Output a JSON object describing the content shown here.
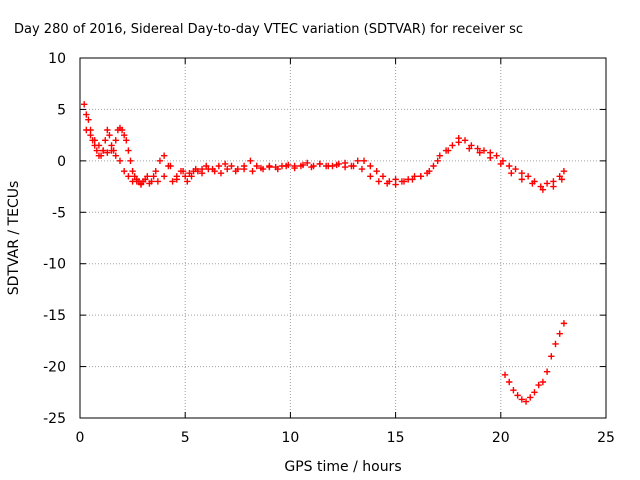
{
  "chart_data": {
    "type": "scatter",
    "title": "Day 280 of 2016, Sidereal Day-to-day VTEC variation (SDTVAR) for receiver sc",
    "xlabel": "GPS time / hours",
    "ylabel": "SDTVAR / TECUs",
    "xlim": [
      0,
      25
    ],
    "ylim": [
      -25,
      10
    ],
    "x_ticks": [
      0,
      5,
      10,
      15,
      20,
      25
    ],
    "y_ticks": [
      10,
      5,
      0,
      -5,
      -10,
      -15,
      -20,
      -25
    ],
    "x_tick_labels": [
      "0",
      "5",
      "10",
      "15",
      "20",
      "25"
    ],
    "y_tick_labels": [
      "10",
      "5",
      "0",
      "-5",
      "-10",
      "-15",
      "-20",
      "-25"
    ],
    "grid": true,
    "marker": "plus",
    "color": "#ff0000",
    "series": [
      {
        "x": [
          0.2,
          0.3,
          0.4,
          0.5,
          0.6,
          0.7,
          0.8,
          0.9,
          1.0,
          1.1,
          1.2,
          1.3,
          1.4,
          1.5,
          1.6,
          1.7,
          1.8,
          1.9,
          2.0,
          2.1,
          2.2,
          2.3,
          2.4,
          2.5,
          2.6,
          2.7,
          2.8,
          2.9,
          3.0,
          3.2,
          3.4,
          3.6,
          3.8,
          4.0,
          4.2,
          4.4,
          4.6,
          4.8,
          5.0,
          5.2,
          5.4,
          5.6,
          5.8,
          6.0,
          6.3,
          6.6,
          6.9,
          7.2,
          7.5,
          7.8,
          8.1,
          8.4,
          8.7,
          9.0,
          9.3,
          9.6,
          9.9,
          10.2,
          10.5,
          10.8,
          11.1,
          11.4,
          11.7,
          12.0,
          12.3,
          12.6,
          12.9,
          13.2,
          13.5,
          13.8,
          14.1,
          14.4,
          14.7,
          15.0,
          15.3,
          15.6,
          15.9,
          16.2,
          16.5,
          16.8,
          17.1,
          17.4,
          17.7,
          18.0,
          18.3,
          18.6,
          18.9,
          19.2,
          19.5,
          19.8,
          20.1,
          20.4,
          20.7,
          21.0,
          21.3,
          21.6,
          21.9,
          22.2,
          22.5,
          22.8,
          23.0
        ],
        "y": [
          5.5,
          4.5,
          4.0,
          3.0,
          2.0,
          1.5,
          1.0,
          0.5,
          0.5,
          1.0,
          2.0,
          3.0,
          2.5,
          1.5,
          1.0,
          2.0,
          3.0,
          3.2,
          3.0,
          2.5,
          2.0,
          1.0,
          0.0,
          -1.0,
          -1.5,
          -1.8,
          -2.0,
          -2.2,
          -2.0,
          -1.5,
          -2.0,
          -1.0,
          0.0,
          0.5,
          -0.5,
          -2.0,
          -1.5,
          -1.0,
          -1.5,
          -1.2,
          -1.0,
          -1.0,
          -0.8,
          -0.5,
          -0.8,
          -0.5,
          -0.3,
          -0.5,
          -0.8,
          -0.5,
          0.0,
          -0.5,
          -0.8,
          -0.5,
          -0.6,
          -0.5,
          -0.4,
          -0.5,
          -0.5,
          -0.2,
          -0.5,
          -0.3,
          -0.5,
          -0.5,
          -0.3,
          -0.6,
          -0.5,
          0.0,
          0.0,
          -0.5,
          -1.0,
          -1.5,
          -2.0,
          -1.8,
          -2.0,
          -1.8,
          -1.5,
          -1.5,
          -1.2,
          -0.5,
          0.5,
          1.0,
          1.5,
          2.2,
          2.0,
          1.5,
          1.2,
          1.0,
          0.8,
          0.5,
          0.0,
          -0.5,
          -0.8,
          -1.2,
          -1.5,
          -2.0,
          -2.5,
          -2.2,
          -2.0,
          -1.5,
          -1.0
        ]
      },
      {
        "x": [
          0.3,
          0.5,
          0.7,
          0.9,
          1.1,
          1.3,
          1.5,
          1.7,
          1.9,
          2.1,
          2.3,
          2.5,
          2.7,
          2.9,
          3.1,
          3.3,
          3.5,
          3.7,
          4.0,
          4.3,
          4.6,
          4.9,
          5.1,
          5.3,
          5.5,
          5.8,
          6.1,
          6.4,
          6.7,
          7.0,
          7.4,
          7.8,
          8.2,
          8.6,
          9.0,
          9.4,
          9.8,
          10.2,
          10.6,
          11.0,
          11.4,
          11.8,
          12.2,
          12.6,
          13.0,
          13.4,
          13.8,
          14.2,
          14.6,
          15.0,
          15.4,
          15.8,
          16.2,
          16.6,
          17.0,
          17.5,
          18.0,
          18.5,
          19.0,
          19.5,
          20.0,
          20.5,
          21.0,
          21.5,
          22.0,
          22.5,
          22.9
        ],
        "y": [
          3.0,
          2.5,
          2.0,
          1.5,
          1.0,
          0.8,
          1.0,
          0.5,
          0.0,
          -1.0,
          -1.5,
          -2.0,
          -2.0,
          -2.3,
          -1.8,
          -2.2,
          -1.5,
          -2.0,
          -1.5,
          -0.5,
          -1.8,
          -1.0,
          -2.0,
          -1.5,
          -0.8,
          -1.2,
          -0.8,
          -1.0,
          -1.2,
          -0.8,
          -1.0,
          -0.8,
          -1.0,
          -0.7,
          -0.6,
          -0.8,
          -0.5,
          -0.7,
          -0.4,
          -0.6,
          -0.3,
          -0.5,
          -0.4,
          -0.2,
          -0.5,
          -0.8,
          -1.5,
          -2.0,
          -2.2,
          -2.3,
          -2.0,
          -1.8,
          -1.5,
          -1.0,
          0.0,
          1.0,
          1.8,
          1.2,
          0.8,
          0.3,
          -0.3,
          -1.2,
          -1.8,
          -2.2,
          -2.8,
          -2.5,
          -1.8
        ]
      },
      {
        "x": [
          20.2,
          20.4,
          20.6,
          20.8,
          21.0,
          21.2,
          21.4,
          21.6,
          21.8,
          22.0,
          22.2,
          22.4,
          22.6,
          22.8,
          23.0
        ],
        "y": [
          -20.8,
          -21.5,
          -22.3,
          -22.8,
          -23.2,
          -23.4,
          -23.0,
          -22.5,
          -21.8,
          -21.5,
          -20.5,
          -19.0,
          -17.8,
          -16.8,
          -15.8
        ]
      }
    ]
  }
}
